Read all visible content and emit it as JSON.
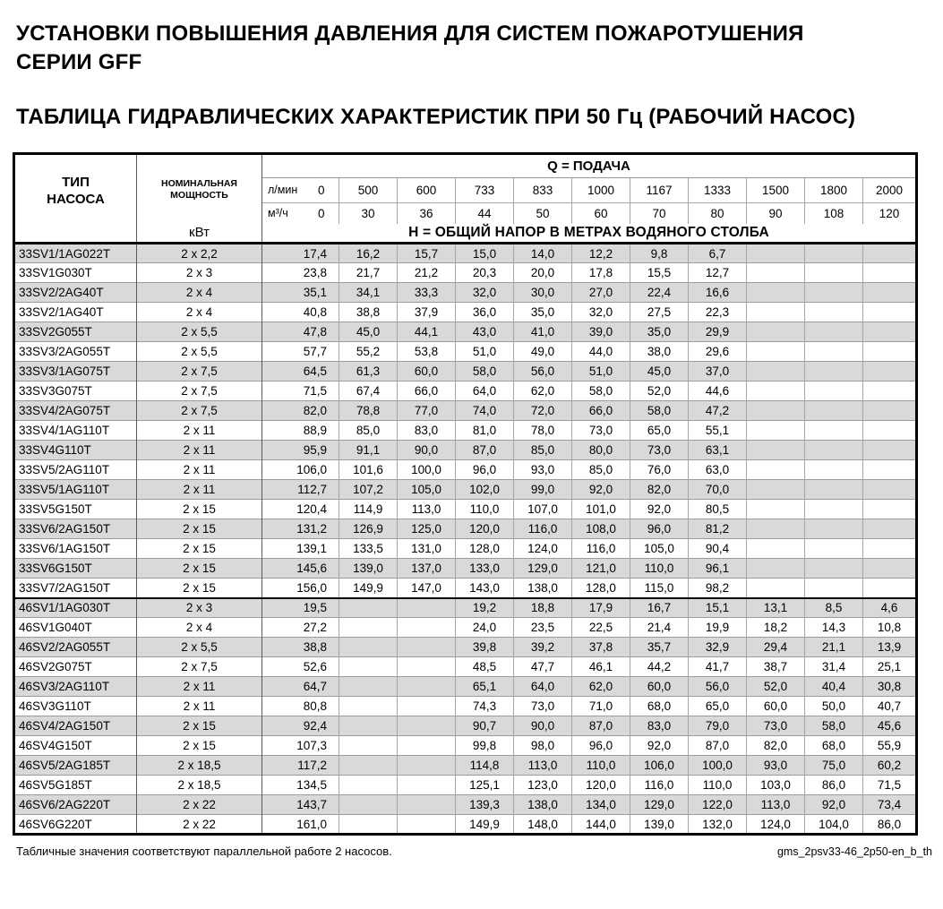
{
  "titles": {
    "main_line1": "УСТАНОВКИ ПОВЫШЕНИЯ ДАВЛЕНИЯ ДЛЯ СИСТЕМ ПОЖАРОТУШЕНИЯ",
    "main_line2": "СЕРИИ GFF",
    "table_title": "ТАБЛИЦА ГИДРАВЛИЧЕСКИХ ХАРАКТЕРИСТИК ПРИ 50 Гц (РАБОЧИЙ НАСОС)"
  },
  "table": {
    "header": {
      "pump_type_line1": "ТИП",
      "pump_type_line2": "НАСОСА",
      "nominal_power": "НОМИНАЛЬНАЯ МОЩНОСТЬ",
      "power_unit": "кВт",
      "q_label": "Q = ПОДАЧА",
      "lmin_unit": "л/мин",
      "m3h_unit": "м³/ч",
      "h_label": "Н = ОБЩИЙ НАПОР В МЕТРАХ ВОДЯНОГО СТОЛБА",
      "lmin_values": [
        "0",
        "500",
        "600",
        "733",
        "833",
        "1000",
        "1167",
        "1333",
        "1500",
        "1800",
        "2000"
      ],
      "m3h_values": [
        "0",
        "30",
        "36",
        "44",
        "50",
        "60",
        "70",
        "80",
        "90",
        "108",
        "120"
      ]
    },
    "section_break_index": 18,
    "rows": [
      {
        "type": "33SV1/1AG022T",
        "power": "2 x 2,2",
        "values": [
          "17,4",
          "16,2",
          "15,7",
          "15,0",
          "14,0",
          "12,2",
          "9,8",
          "6,7",
          "",
          "",
          ""
        ]
      },
      {
        "type": "33SV1G030T",
        "power": "2 x 3",
        "values": [
          "23,8",
          "21,7",
          "21,2",
          "20,3",
          "20,0",
          "17,8",
          "15,5",
          "12,7",
          "",
          "",
          ""
        ]
      },
      {
        "type": "33SV2/2AG40T",
        "power": "2 x 4",
        "values": [
          "35,1",
          "34,1",
          "33,3",
          "32,0",
          "30,0",
          "27,0",
          "22,4",
          "16,6",
          "",
          "",
          ""
        ]
      },
      {
        "type": "33SV2/1AG40T",
        "power": "2 x 4",
        "values": [
          "40,8",
          "38,8",
          "37,9",
          "36,0",
          "35,0",
          "32,0",
          "27,5",
          "22,3",
          "",
          "",
          ""
        ]
      },
      {
        "type": "33SV2G055T",
        "power": "2 x 5,5",
        "values": [
          "47,8",
          "45,0",
          "44,1",
          "43,0",
          "41,0",
          "39,0",
          "35,0",
          "29,9",
          "",
          "",
          ""
        ]
      },
      {
        "type": "33SV3/2AG055T",
        "power": "2 x 5,5",
        "values": [
          "57,7",
          "55,2",
          "53,8",
          "51,0",
          "49,0",
          "44,0",
          "38,0",
          "29,6",
          "",
          "",
          ""
        ]
      },
      {
        "type": "33SV3/1AG075T",
        "power": "2 x 7,5",
        "values": [
          "64,5",
          "61,3",
          "60,0",
          "58,0",
          "56,0",
          "51,0",
          "45,0",
          "37,0",
          "",
          "",
          ""
        ]
      },
      {
        "type": "33SV3G075T",
        "power": "2 x 7,5",
        "values": [
          "71,5",
          "67,4",
          "66,0",
          "64,0",
          "62,0",
          "58,0",
          "52,0",
          "44,6",
          "",
          "",
          ""
        ]
      },
      {
        "type": "33SV4/2AG075T",
        "power": "2 x 7,5",
        "values": [
          "82,0",
          "78,8",
          "77,0",
          "74,0",
          "72,0",
          "66,0",
          "58,0",
          "47,2",
          "",
          "",
          ""
        ]
      },
      {
        "type": "33SV4/1AG110T",
        "power": "2 x 11",
        "values": [
          "88,9",
          "85,0",
          "83,0",
          "81,0",
          "78,0",
          "73,0",
          "65,0",
          "55,1",
          "",
          "",
          ""
        ]
      },
      {
        "type": "33SV4G110T",
        "power": "2 x 11",
        "values": [
          "95,9",
          "91,1",
          "90,0",
          "87,0",
          "85,0",
          "80,0",
          "73,0",
          "63,1",
          "",
          "",
          ""
        ]
      },
      {
        "type": "33SV5/2AG110T",
        "power": "2 x 11",
        "values": [
          "106,0",
          "101,6",
          "100,0",
          "96,0",
          "93,0",
          "85,0",
          "76,0",
          "63,0",
          "",
          "",
          ""
        ]
      },
      {
        "type": "33SV5/1AG110T",
        "power": "2 x 11",
        "values": [
          "112,7",
          "107,2",
          "105,0",
          "102,0",
          "99,0",
          "92,0",
          "82,0",
          "70,0",
          "",
          "",
          ""
        ]
      },
      {
        "type": "33SV5G150T",
        "power": "2 x 15",
        "values": [
          "120,4",
          "114,9",
          "113,0",
          "110,0",
          "107,0",
          "101,0",
          "92,0",
          "80,5",
          "",
          "",
          ""
        ]
      },
      {
        "type": "33SV6/2AG150T",
        "power": "2 x 15",
        "values": [
          "131,2",
          "126,9",
          "125,0",
          "120,0",
          "116,0",
          "108,0",
          "96,0",
          "81,2",
          "",
          "",
          ""
        ]
      },
      {
        "type": "33SV6/1AG150T",
        "power": "2 x 15",
        "values": [
          "139,1",
          "133,5",
          "131,0",
          "128,0",
          "124,0",
          "116,0",
          "105,0",
          "90,4",
          "",
          "",
          ""
        ]
      },
      {
        "type": "33SV6G150T",
        "power": "2 x 15",
        "values": [
          "145,6",
          "139,0",
          "137,0",
          "133,0",
          "129,0",
          "121,0",
          "110,0",
          "96,1",
          "",
          "",
          ""
        ]
      },
      {
        "type": "33SV7/2AG150T",
        "power": "2 x 15",
        "values": [
          "156,0",
          "149,9",
          "147,0",
          "143,0",
          "138,0",
          "128,0",
          "115,0",
          "98,2",
          "",
          "",
          ""
        ]
      },
      {
        "type": "46SV1/1AG030T",
        "power": "2 x 3",
        "values": [
          "19,5",
          "",
          "",
          "19,2",
          "18,8",
          "17,9",
          "16,7",
          "15,1",
          "13,1",
          "8,5",
          "4,6"
        ]
      },
      {
        "type": "46SV1G040T",
        "power": "2 x 4",
        "values": [
          "27,2",
          "",
          "",
          "24,0",
          "23,5",
          "22,5",
          "21,4",
          "19,9",
          "18,2",
          "14,3",
          "10,8"
        ]
      },
      {
        "type": "46SV2/2AG055T",
        "power": "2 x 5,5",
        "values": [
          "38,8",
          "",
          "",
          "39,8",
          "39,2",
          "37,8",
          "35,7",
          "32,9",
          "29,4",
          "21,1",
          "13,9"
        ]
      },
      {
        "type": "46SV2G075T",
        "power": "2 x 7,5",
        "values": [
          "52,6",
          "",
          "",
          "48,5",
          "47,7",
          "46,1",
          "44,2",
          "41,7",
          "38,7",
          "31,4",
          "25,1"
        ]
      },
      {
        "type": "46SV3/2AG110T",
        "power": "2 x 11",
        "values": [
          "64,7",
          "",
          "",
          "65,1",
          "64,0",
          "62,0",
          "60,0",
          "56,0",
          "52,0",
          "40,4",
          "30,8"
        ]
      },
      {
        "type": "46SV3G110T",
        "power": "2 x 11",
        "values": [
          "80,8",
          "",
          "",
          "74,3",
          "73,0",
          "71,0",
          "68,0",
          "65,0",
          "60,0",
          "50,0",
          "40,7"
        ]
      },
      {
        "type": "46SV4/2AG150T",
        "power": "2 x 15",
        "values": [
          "92,4",
          "",
          "",
          "90,7",
          "90,0",
          "87,0",
          "83,0",
          "79,0",
          "73,0",
          "58,0",
          "45,6"
        ]
      },
      {
        "type": "46SV4G150T",
        "power": "2 x 15",
        "values": [
          "107,3",
          "",
          "",
          "99,8",
          "98,0",
          "96,0",
          "92,0",
          "87,0",
          "82,0",
          "68,0",
          "55,9"
        ]
      },
      {
        "type": "46SV5/2AG185T",
        "power": "2 x 18,5",
        "values": [
          "117,2",
          "",
          "",
          "114,8",
          "113,0",
          "110,0",
          "106,0",
          "100,0",
          "93,0",
          "75,0",
          "60,2"
        ]
      },
      {
        "type": "46SV5G185T",
        "power": "2 x 18,5",
        "values": [
          "134,5",
          "",
          "",
          "125,1",
          "123,0",
          "120,0",
          "116,0",
          "110,0",
          "103,0",
          "86,0",
          "71,5"
        ]
      },
      {
        "type": "46SV6/2AG220T",
        "power": "2 x 22",
        "values": [
          "143,7",
          "",
          "",
          "139,3",
          "138,0",
          "134,0",
          "129,0",
          "122,0",
          "113,0",
          "92,0",
          "73,4"
        ]
      },
      {
        "type": "46SV6G220T",
        "power": "2 x 22",
        "values": [
          "161,0",
          "",
          "",
          "149,9",
          "148,0",
          "144,0",
          "139,0",
          "132,0",
          "124,0",
          "104,0",
          "86,0"
        ]
      }
    ]
  },
  "footer": {
    "note": "Табличные значения соответствуют параллельной работе 2 насосов.",
    "doc_code": "gms_2psv33-46_2p50-en_b_th"
  },
  "colors": {
    "stripe_row": "#d9d9d9",
    "grid_light": "#a6a6a6",
    "grid_dark": "#595959",
    "border": "#000000"
  }
}
